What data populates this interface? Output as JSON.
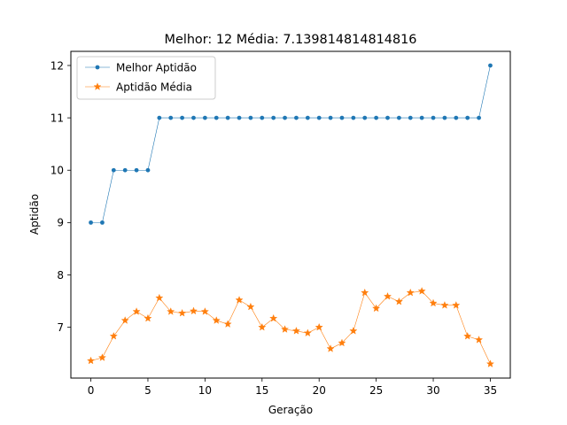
{
  "chart_data": {
    "type": "line",
    "title": "Melhor: 12 Média: 7.139814814814816",
    "xlabel": "Geração",
    "ylabel": "Aptidão",
    "xlim": [
      -1.75,
      36.75
    ],
    "ylim": [
      6.03,
      12.27
    ],
    "xticks": [
      0,
      5,
      10,
      15,
      20,
      25,
      30,
      35
    ],
    "yticks": [
      7,
      8,
      9,
      10,
      11,
      12
    ],
    "grid": false,
    "legend_position": "upper-left",
    "x": [
      0,
      1,
      2,
      3,
      4,
      5,
      6,
      7,
      8,
      9,
      10,
      11,
      12,
      13,
      14,
      15,
      16,
      17,
      18,
      19,
      20,
      21,
      22,
      23,
      24,
      25,
      26,
      27,
      28,
      29,
      30,
      31,
      32,
      33,
      34,
      35
    ],
    "series": [
      {
        "name": "Melhor Aptidão",
        "color": "#1f77b4",
        "marker": "dot",
        "values": [
          9,
          9,
          10,
          10,
          10,
          10,
          11,
          11,
          11,
          11,
          11,
          11,
          11,
          11,
          11,
          11,
          11,
          11,
          11,
          11,
          11,
          11,
          11,
          11,
          11,
          11,
          11,
          11,
          11,
          11,
          11,
          11,
          11,
          11,
          11,
          12
        ]
      },
      {
        "name": "Aptidão Média",
        "color": "#ff7f0e",
        "marker": "star",
        "values": [
          6.36,
          6.42,
          6.83,
          7.13,
          7.3,
          7.17,
          7.56,
          7.3,
          7.27,
          7.31,
          7.3,
          7.13,
          7.06,
          7.52,
          7.39,
          7.0,
          7.17,
          6.96,
          6.93,
          6.89,
          7.0,
          6.59,
          6.7,
          6.93,
          7.66,
          7.36,
          7.59,
          7.49,
          7.66,
          7.69,
          7.46,
          7.42,
          7.42,
          6.83,
          6.76,
          6.3
        ]
      }
    ]
  }
}
